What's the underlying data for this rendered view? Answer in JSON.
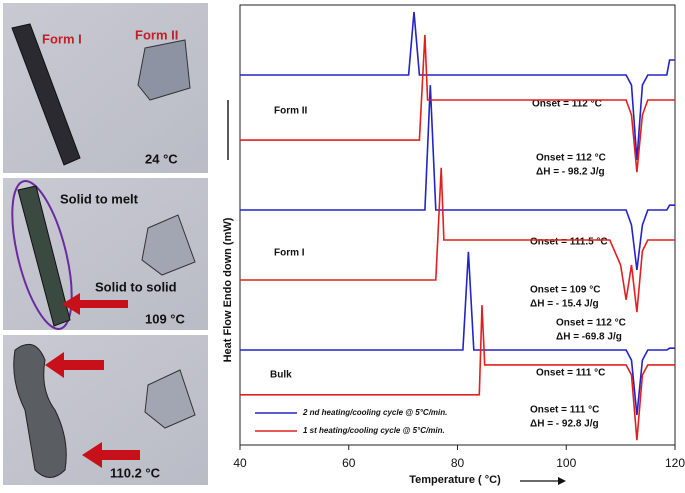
{
  "panels": [
    {
      "labels": [
        "Form I",
        "Form II",
        "24 °C"
      ]
    },
    {
      "labels": [
        "Solid to melt",
        "Solid to solid",
        "109 °C"
      ]
    },
    {
      "labels": [
        "110.2 °C"
      ]
    }
  ],
  "chart_data": {
    "type": "line",
    "xlabel": "Temperature ( °C)",
    "ylabel": "Heat Flow Endo down (mW)",
    "xlim": [
      40,
      120
    ],
    "xticks": [
      40,
      60,
      80,
      100,
      120
    ],
    "ylim": [
      0,
      100
    ],
    "legend": "lower left",
    "annotations": [
      "Form II",
      "Onset = 112 °C",
      "Onset = 112 °C",
      "ΔH = - 98.2 J/g",
      "Form I",
      "Onset = 111.5 °C",
      "Onset = 109 °C",
      "ΔH = - 15.4 J/g",
      "Onset = 112 °C",
      "ΔH = -69.8 J/g",
      "Bulk",
      "Onset = 111 °C",
      "Onset = 111 °C",
      "ΔH = - 92.8 J/g"
    ],
    "series": [
      {
        "name": "2 nd heating/cooling cycle @ 5°C/min.",
        "color": "#2323c8",
        "x": [
          40,
          71,
          72,
          73,
          111,
          112,
          113,
          114,
          115,
          118.5,
          119,
          120,
          null,
          40,
          74,
          75,
          76,
          111,
          112,
          113,
          114,
          115,
          118.5,
          119,
          120,
          null,
          40,
          81,
          82,
          83,
          111,
          112,
          113,
          114,
          115,
          118.5,
          119,
          120
        ],
        "values": [
          84.1,
          84.1,
          98.4,
          84.1,
          84.1,
          81.8,
          64.8,
          81.8,
          84.1,
          84.1,
          87.5,
          87.5,
          null,
          53.4,
          53.4,
          81.8,
          53.4,
          53.4,
          50.0,
          39.8,
          50.0,
          53.4,
          53.4,
          54.5,
          54.5,
          null,
          21.6,
          21.6,
          43.9,
          21.6,
          21.6,
          19.3,
          6.8,
          19.3,
          21.6,
          21.6,
          22.0,
          22.0
        ]
      },
      {
        "name": "1 st heating/cooling cycle @ 5°C/min.",
        "color": "#e02020",
        "x": [
          40,
          73,
          74,
          74.5,
          111,
          112,
          113,
          114,
          115,
          120,
          null,
          40,
          76,
          77,
          77.5,
          108,
          110,
          111,
          112,
          113,
          114,
          115,
          120,
          null,
          40,
          84,
          84.5,
          85,
          111,
          112,
          113,
          114,
          115,
          120
        ],
        "values": [
          69.3,
          69.3,
          93.2,
          78.4,
          78.4,
          75.0,
          62.0,
          75.0,
          78.4,
          78.4,
          null,
          37.5,
          37.5,
          63.0,
          46.6,
          46.6,
          40.9,
          33.0,
          40.9,
          30.2,
          44.1,
          46.6,
          46.6,
          null,
          11.4,
          11.4,
          31.8,
          18.2,
          18.2,
          15.9,
          1.1,
          15.9,
          18.2,
          18.2
        ]
      }
    ]
  }
}
